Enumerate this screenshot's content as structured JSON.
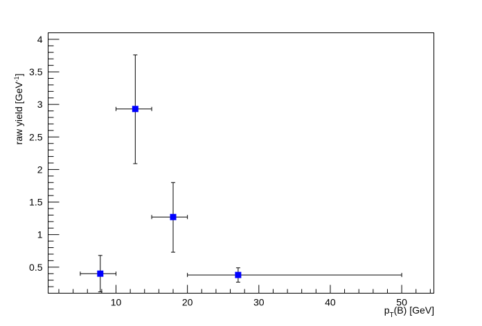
{
  "chart_data": {
    "type": "scatter",
    "xlabel": {
      "main": "p",
      "sub": "T",
      "rest": "(B) [GeV]"
    },
    "ylabel": {
      "main": "raw yield [GeV",
      "sup": "-1",
      "end": "]"
    },
    "xlim": [
      0.5,
      54.5
    ],
    "ylim": [
      0.1,
      4.1
    ],
    "x_major_ticks": [
      10,
      20,
      30,
      40,
      50
    ],
    "x_tick_labels": [
      "10",
      "20",
      "30",
      "40",
      "50"
    ],
    "y_major_ticks": [
      0.5,
      1,
      1.5,
      2,
      2.5,
      3,
      3.5,
      4
    ],
    "y_tick_labels": [
      "0.5",
      "1",
      "1.5",
      "2",
      "2.5",
      "3",
      "3.5",
      "4"
    ],
    "marker_color": "#0000ff",
    "points": [
      {
        "x": 7.8,
        "y": 0.4,
        "xlo": 5.0,
        "xhi": 10.0,
        "ylo": 0.12,
        "yhi": 0.68
      },
      {
        "x": 12.7,
        "y": 2.93,
        "xlo": 10.0,
        "xhi": 15.0,
        "ylo": 2.09,
        "yhi": 3.76
      },
      {
        "x": 18.0,
        "y": 1.27,
        "xlo": 15.0,
        "xhi": 20.0,
        "ylo": 0.73,
        "yhi": 1.8
      },
      {
        "x": 27.1,
        "y": 0.38,
        "xlo": 20.0,
        "xhi": 50.0,
        "ylo": 0.27,
        "yhi": 0.49
      }
    ]
  }
}
